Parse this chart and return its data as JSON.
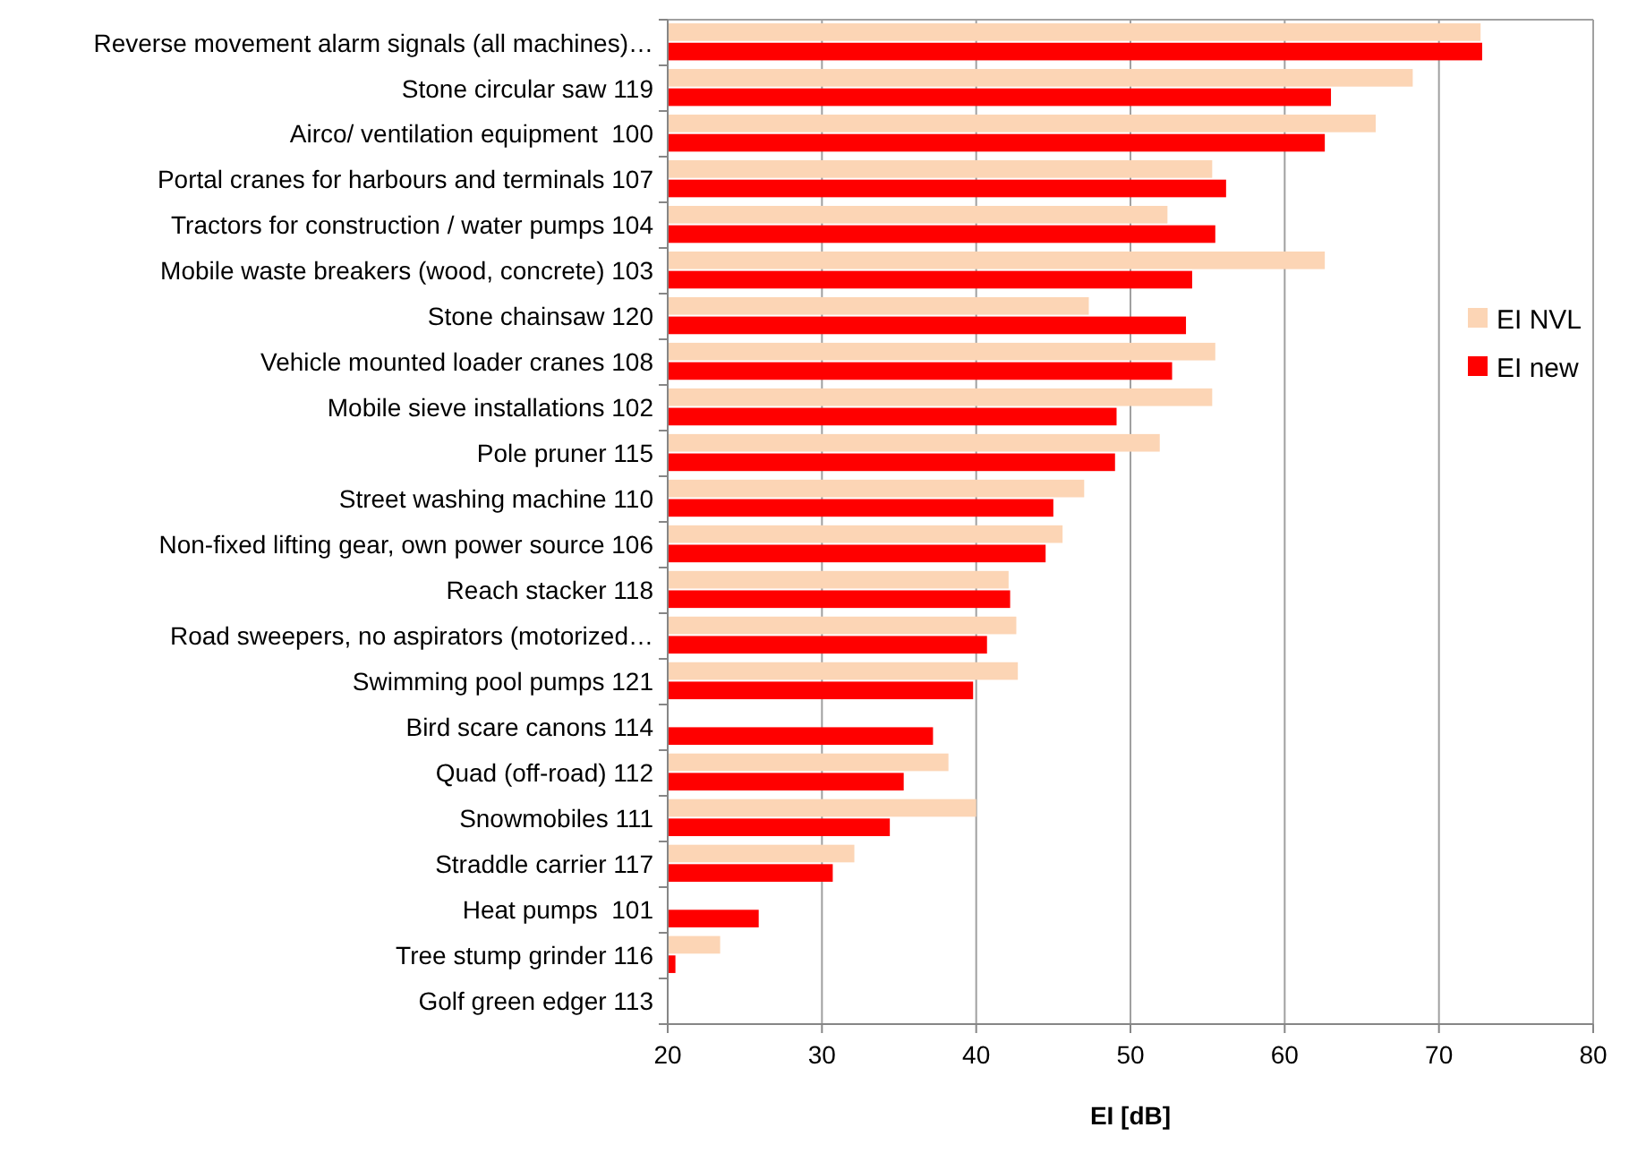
{
  "chart_data": {
    "type": "bar",
    "orientation": "horizontal",
    "xlabel": "EI [dB]",
    "categories": [
      "Reverse movement alarm signals (all machines)…",
      "Stone circular saw 119",
      "Airco/ ventilation equipment  100",
      "Portal cranes for harbours and terminals 107",
      "Tractors for construction / water pumps 104",
      "Mobile waste breakers (wood, concrete) 103",
      "Stone chainsaw 120",
      "Vehicle mounted loader cranes 108",
      "Mobile sieve installations 102",
      "Pole pruner 115",
      "Street washing machine 110",
      "Non-fixed lifting gear, own power source 106",
      "Reach stacker 118",
      "Road sweepers, no aspirators (motorized…",
      "Swimming pool pumps 121",
      "Bird scare canons 114",
      "Quad (off-road) 112",
      "Snowmobiles 111",
      "Straddle carrier 117",
      "Heat pumps  101",
      "Tree stump grinder 116",
      "Golf green edger 113"
    ],
    "series": [
      {
        "name": "EI NVL",
        "color": "#fcd5b5",
        "values": [
          72.7,
          68.3,
          65.9,
          55.3,
          52.4,
          62.6,
          47.3,
          55.5,
          55.3,
          51.9,
          47.0,
          45.6,
          42.1,
          42.6,
          42.7,
          null,
          38.2,
          40.0,
          32.1,
          null,
          23.4,
          null
        ]
      },
      {
        "name": "EI new",
        "color": "#ff0000",
        "values": [
          72.8,
          63.0,
          62.6,
          56.2,
          55.5,
          54.0,
          53.6,
          52.7,
          49.1,
          49.0,
          45.0,
          44.5,
          42.2,
          40.7,
          39.8,
          37.2,
          35.3,
          34.4,
          30.7,
          25.9,
          20.5,
          null
        ]
      }
    ],
    "xlim": [
      20,
      80
    ],
    "xticks": [
      20,
      30,
      40,
      50,
      60,
      70,
      80
    ],
    "grid": "x",
    "legend": "right"
  }
}
